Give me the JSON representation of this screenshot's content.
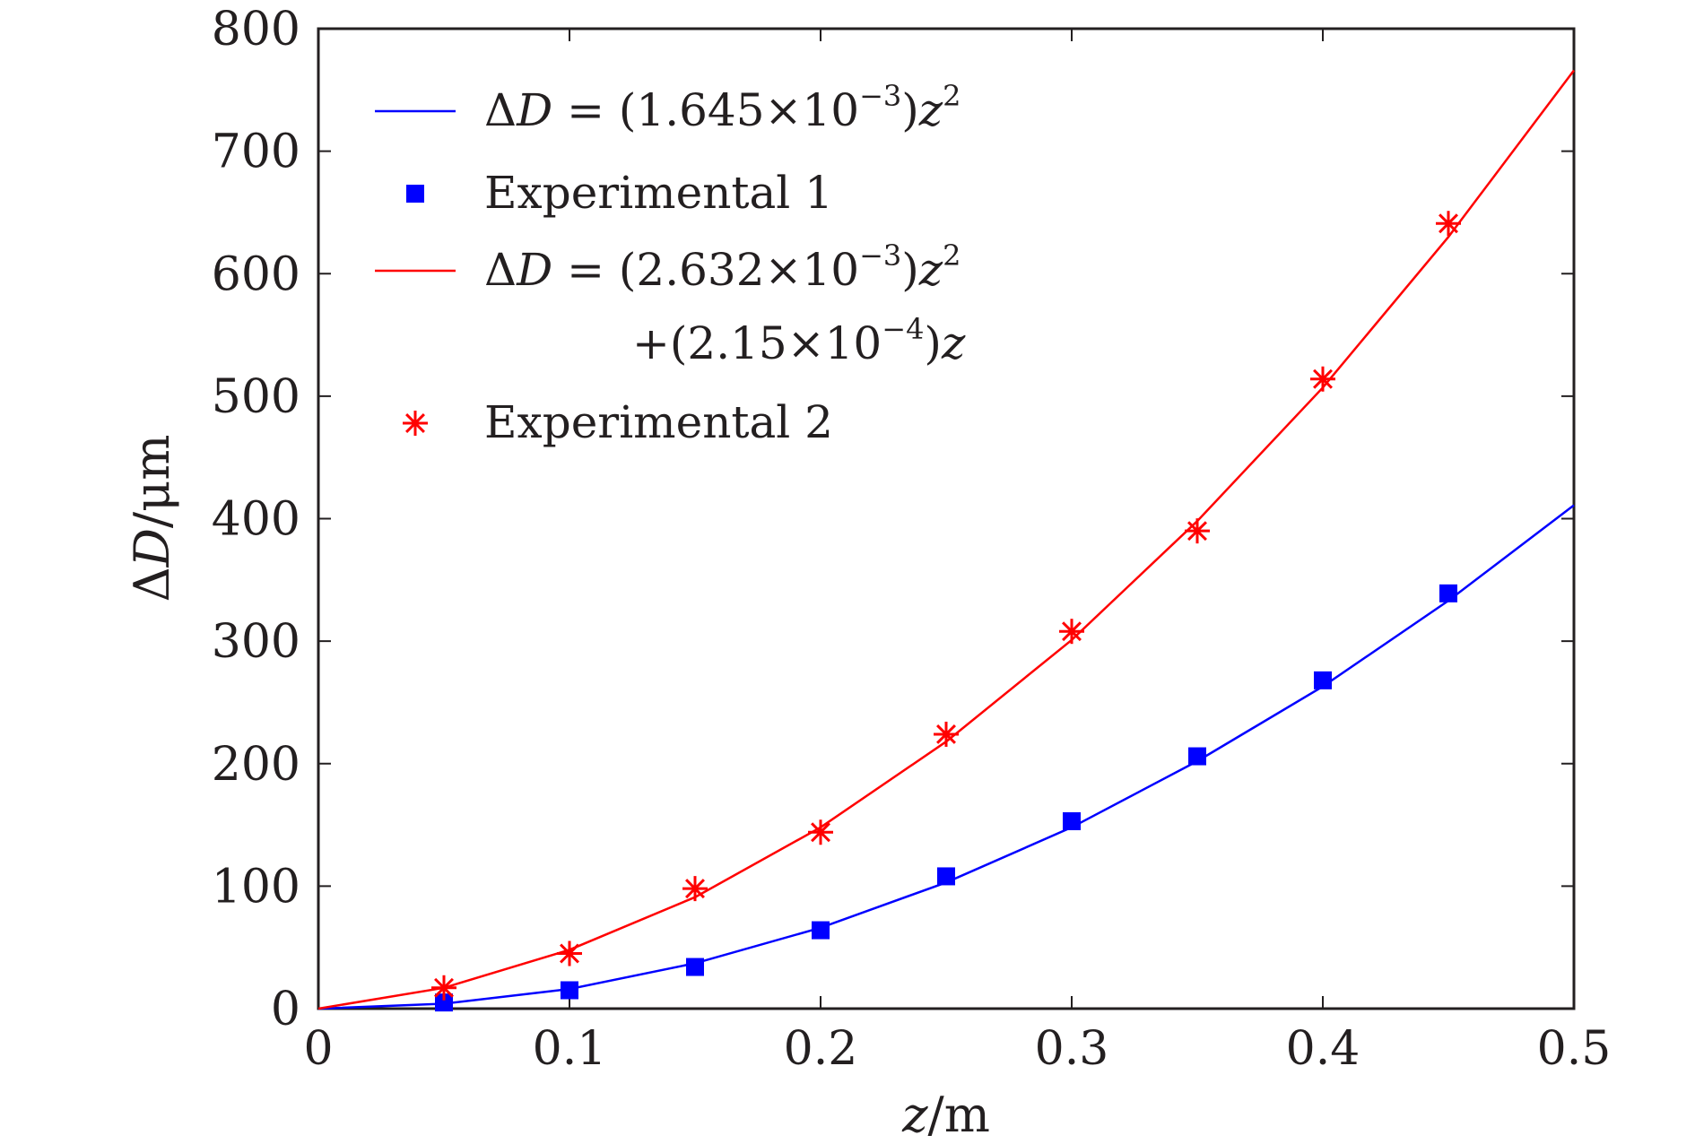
{
  "chart_data": {
    "type": "line",
    "xlabel": {
      "var": "z",
      "unit": "m"
    },
    "ylabel": {
      "prefix": "Δ",
      "var": "D",
      "unit": "μm"
    },
    "xlim": [
      0,
      0.5
    ],
    "ylim": [
      0,
      800
    ],
    "xticks": [
      0,
      0.1,
      0.2,
      0.3,
      0.4,
      0.5
    ],
    "xtick_labels": [
      "0",
      "0.1",
      "0.2",
      "0.3",
      "0.4",
      "0.5"
    ],
    "yticks": [
      0,
      100,
      200,
      300,
      400,
      500,
      600,
      700,
      800
    ],
    "ytick_labels": [
      "0",
      "100",
      "200",
      "300",
      "400",
      "500",
      "600",
      "700",
      "800"
    ],
    "grid": false,
    "legend_position": "top-left",
    "series": [
      {
        "name": "ΔD = (1.645×10⁻³)z²",
        "kind": "line",
        "color": "#0000ff",
        "x": [
          0,
          0.05,
          0.1,
          0.15,
          0.2,
          0.25,
          0.3,
          0.35,
          0.4,
          0.45,
          0.5
        ],
        "y": [
          0,
          4,
          16,
          37,
          66,
          103,
          148,
          202,
          263,
          333,
          411
        ]
      },
      {
        "name": "Experimental 1",
        "kind": "scatter",
        "marker": "square",
        "color": "#0000ff",
        "x": [
          0.05,
          0.1,
          0.15,
          0.2,
          0.25,
          0.3,
          0.35,
          0.4,
          0.45
        ],
        "y": [
          5,
          15,
          34,
          64,
          108,
          153,
          206,
          268,
          339
        ]
      },
      {
        "name": "ΔD = (2.632×10⁻³)z² +(2.15×10⁻⁴)z",
        "kind": "line",
        "color": "#ff0000",
        "x": [
          0,
          0.05,
          0.1,
          0.15,
          0.2,
          0.25,
          0.3,
          0.35,
          0.4,
          0.45,
          0.5
        ],
        "y": [
          0,
          17,
          48,
          91,
          148,
          218,
          301,
          398,
          507,
          630,
          766
        ]
      },
      {
        "name": "Experimental 2",
        "kind": "scatter",
        "marker": "asterisk",
        "color": "#ff0000",
        "x": [
          0.05,
          0.1,
          0.15,
          0.2,
          0.25,
          0.3,
          0.35,
          0.4,
          0.45
        ],
        "y": [
          17,
          45,
          98,
          144,
          224,
          308,
          390,
          514,
          641
        ]
      }
    ],
    "legend": [
      {
        "lines": [
          {
            "pre": "Δ",
            "var": "D",
            "post": " = (1.645×10",
            "sup": "−3",
            "tail": ")",
            "tailVar": "z",
            "tailSup": "2"
          }
        ]
      },
      {
        "lines": [
          {
            "plain": "Experimental 1"
          }
        ]
      },
      {
        "lines": [
          {
            "pre": "Δ",
            "var": "D",
            "post": " = (2.632×10",
            "sup": "−3",
            "tail": ")",
            "tailVar": "z",
            "tailSup": "2"
          },
          {
            "pre": "+(2.15×10",
            "var": "",
            "post": "",
            "sup": "−4",
            "tail": ")",
            "tailVar": "z",
            "tailSup": ""
          }
        ]
      },
      {
        "lines": [
          {
            "plain": "Experimental 2"
          }
        ]
      }
    ]
  }
}
